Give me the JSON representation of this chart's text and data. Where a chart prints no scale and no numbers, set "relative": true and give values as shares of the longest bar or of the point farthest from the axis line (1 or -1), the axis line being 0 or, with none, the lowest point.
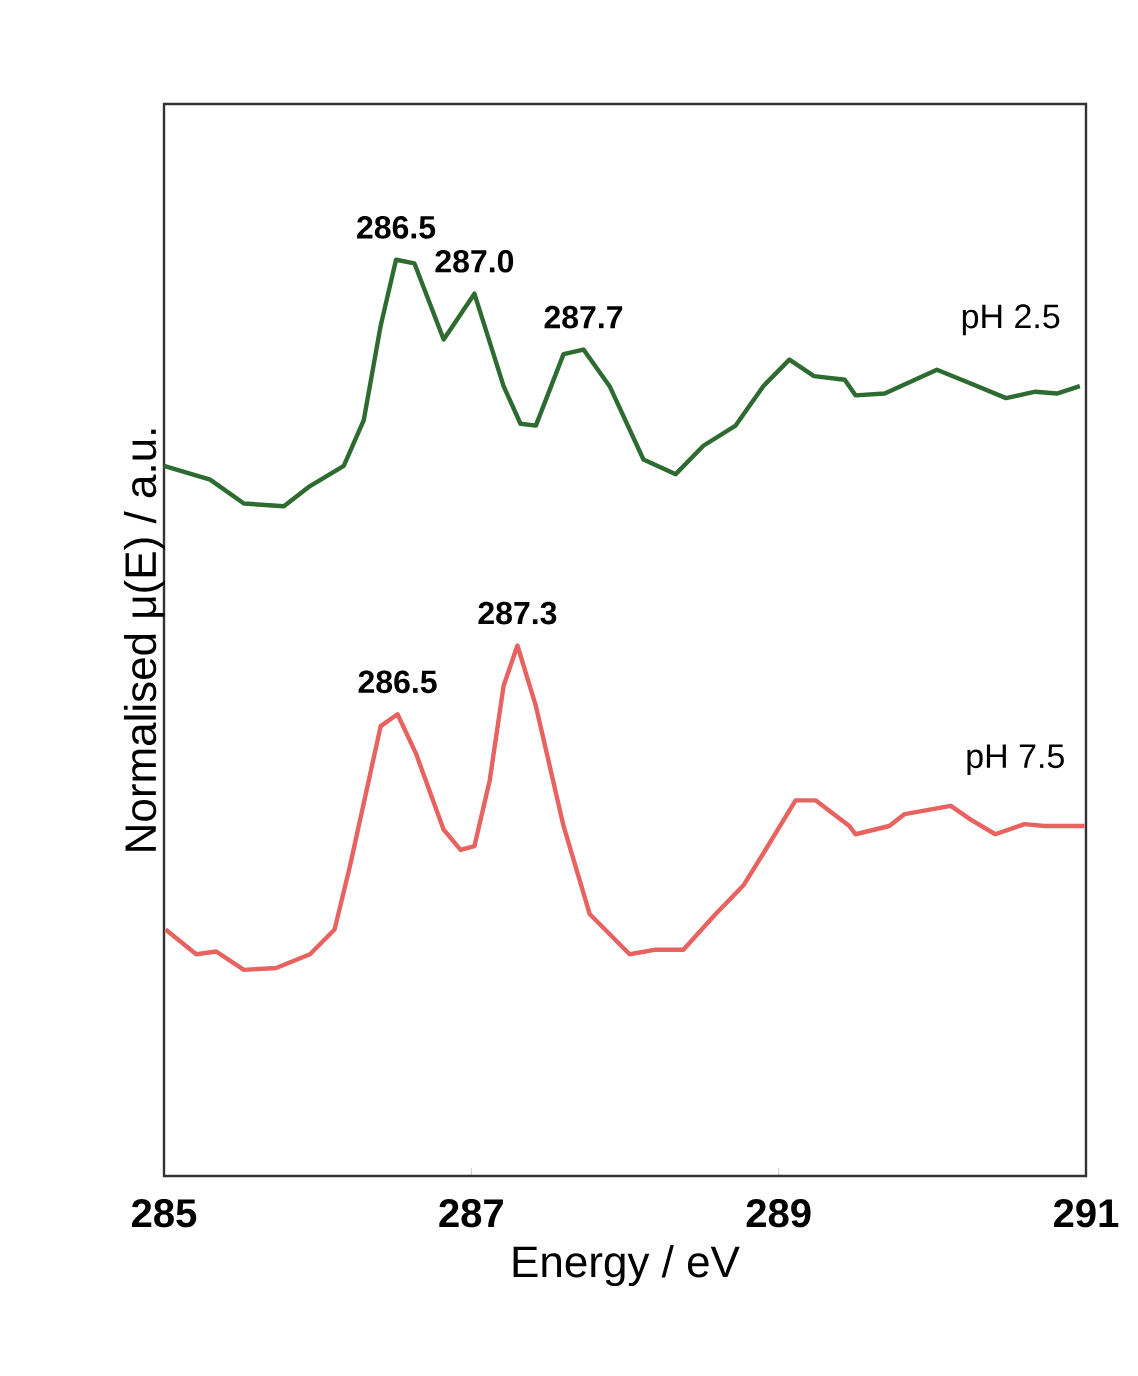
{
  "chart_data": {
    "type": "line",
    "relative": true,
    "xlabel": "Energy / eV",
    "ylabel": "Normalised μ(E) / a.u.",
    "xlim": [
      285,
      291
    ],
    "xticks": [
      285,
      287,
      289,
      291
    ],
    "series": [
      {
        "name": "pH 2.5",
        "color": "#2e6b30",
        "x": [
          285.0,
          285.3,
          285.52,
          285.78,
          285.95,
          286.17,
          286.3,
          286.41,
          286.51,
          286.63,
          286.82,
          287.02,
          287.21,
          287.32,
          287.42,
          287.6,
          287.73,
          287.9,
          288.12,
          288.33,
          288.51,
          288.72,
          288.9,
          289.07,
          289.23,
          289.43,
          289.5,
          289.69,
          290.03,
          290.25,
          290.48,
          290.67,
          290.81,
          290.96
        ],
        "values": [
          0.775,
          0.76,
          0.734,
          0.731,
          0.753,
          0.775,
          0.825,
          0.928,
          1.0,
          0.996,
          0.913,
          0.963,
          0.862,
          0.821,
          0.819,
          0.897,
          0.902,
          0.862,
          0.782,
          0.766,
          0.797,
          0.819,
          0.862,
          0.891,
          0.873,
          0.869,
          0.852,
          0.854,
          0.88,
          0.865,
          0.849,
          0.856,
          0.854,
          0.862
        ]
      },
      {
        "name": "pH 7.5",
        "color": "#e8625f",
        "x": [
          285.01,
          285.21,
          285.34,
          285.52,
          285.73,
          285.95,
          286.11,
          286.21,
          286.41,
          286.52,
          286.64,
          286.82,
          286.93,
          287.02,
          287.12,
          287.21,
          287.3,
          287.42,
          287.6,
          287.77,
          288.03,
          288.2,
          288.38,
          288.59,
          288.77,
          288.9,
          289.11,
          289.24,
          289.46,
          289.5,
          289.72,
          289.82,
          290.12,
          290.25,
          290.41,
          290.6,
          290.73,
          290.99
        ],
        "values": [
          0.269,
          0.242,
          0.245,
          0.225,
          0.227,
          0.242,
          0.269,
          0.338,
          0.491,
          0.504,
          0.461,
          0.378,
          0.356,
          0.36,
          0.432,
          0.535,
          0.579,
          0.513,
          0.382,
          0.286,
          0.242,
          0.247,
          0.247,
          0.286,
          0.317,
          0.352,
          0.41,
          0.41,
          0.382,
          0.373,
          0.382,
          0.395,
          0.404,
          0.389,
          0.373,
          0.384,
          0.382,
          0.382
        ]
      }
    ],
    "annotations": [
      {
        "text": "286.5",
        "x": 286.51,
        "y": 1.0
      },
      {
        "text": "287.0",
        "x": 287.02,
        "y": 0.963
      },
      {
        "text": "287.7",
        "x": 287.73,
        "y": 0.902
      },
      {
        "text": "286.5",
        "x": 286.52,
        "y": 0.504
      },
      {
        "text": "287.3",
        "x": 287.3,
        "y": 0.579
      }
    ]
  }
}
